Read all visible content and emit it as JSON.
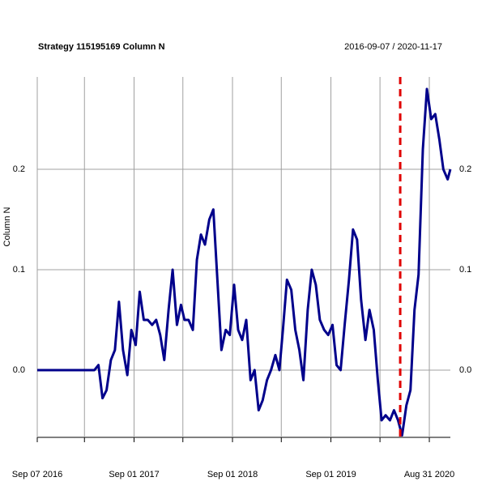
{
  "chart_data": {
    "type": "line",
    "title": "Strategy 115195169 Column N",
    "subtitle": "2016-09-07 / 2020-11-17",
    "y_label": "Column N",
    "xlim": [
      "2016-09-07",
      "2020-11-17"
    ],
    "ylim": [
      -0.067,
      0.292
    ],
    "yticks": [
      {
        "value": 0,
        "label": "0.0"
      },
      0.1,
      0.2
    ],
    "xticks": [
      {
        "value": "2016-09-07",
        "label": "Sep 07 2016"
      },
      {
        "value": "2017-09-01",
        "label": "Sep 01 2017"
      },
      {
        "value": "2018-09-01",
        "label": "Sep 01 2018"
      },
      {
        "value": "2019-09-01",
        "label": "Sep 01 2019"
      },
      {
        "value": "2020-08-31",
        "label": "Aug 31 2020"
      }
    ],
    "xminor_ticks": [
      "2017-03-01",
      "2018-03-01",
      "2019-03-01",
      "2020-03-01"
    ],
    "grid": true,
    "event_lines": [
      {
        "x": "2020-05-15",
        "color": "#e00000"
      }
    ],
    "x": [
      "2016-09-07",
      "2016-09-22",
      "2016-10-07",
      "2016-10-22",
      "2016-11-07",
      "2016-11-22",
      "2016-12-07",
      "2016-12-22",
      "2017-01-07",
      "2017-01-22",
      "2017-02-07",
      "2017-02-22",
      "2017-03-07",
      "2017-03-22",
      "2017-04-07",
      "2017-04-22",
      "2017-05-07",
      "2017-05-22",
      "2017-06-07",
      "2017-06-22",
      "2017-07-07",
      "2017-07-22",
      "2017-08-07",
      "2017-08-22",
      "2017-09-07",
      "2017-09-22",
      "2017-10-07",
      "2017-10-22",
      "2017-11-07",
      "2017-11-22",
      "2017-12-07",
      "2017-12-22",
      "2018-01-07",
      "2018-01-22",
      "2018-02-07",
      "2018-02-22",
      "2018-03-07",
      "2018-03-22",
      "2018-04-07",
      "2018-04-22",
      "2018-05-07",
      "2018-05-22",
      "2018-06-07",
      "2018-06-22",
      "2018-07-07",
      "2018-07-22",
      "2018-08-07",
      "2018-08-22",
      "2018-09-07",
      "2018-09-22",
      "2018-10-07",
      "2018-10-22",
      "2018-11-07",
      "2018-11-22",
      "2018-12-07",
      "2018-12-22",
      "2019-01-07",
      "2019-01-22",
      "2019-02-07",
      "2019-02-22",
      "2019-03-07",
      "2019-03-22",
      "2019-04-07",
      "2019-04-22",
      "2019-05-07",
      "2019-05-22",
      "2019-06-07",
      "2019-06-22",
      "2019-07-07",
      "2019-07-22",
      "2019-08-07",
      "2019-08-22",
      "2019-09-07",
      "2019-09-22",
      "2019-10-07",
      "2019-10-22",
      "2019-11-07",
      "2019-11-22",
      "2019-12-07",
      "2019-12-22",
      "2020-01-07",
      "2020-01-22",
      "2020-02-07",
      "2020-02-22",
      "2020-03-07",
      "2020-03-22",
      "2020-04-07",
      "2020-04-22",
      "2020-05-07",
      "2020-05-22",
      "2020-06-07",
      "2020-06-22",
      "2020-07-07",
      "2020-07-22",
      "2020-08-07",
      "2020-08-22",
      "2020-09-07",
      "2020-09-22",
      "2020-10-07",
      "2020-10-22",
      "2020-11-07",
      "2020-11-17"
    ],
    "series": [
      {
        "name": "Column N",
        "color": "#00008b",
        "values": [
          0,
          0,
          0,
          0,
          0,
          0,
          0,
          0,
          0,
          0,
          0,
          0,
          0,
          0,
          0,
          0.005,
          -0.028,
          -0.02,
          0.01,
          0.02,
          0.068,
          0.02,
          -0.005,
          0.04,
          0.025,
          0.078,
          0.05,
          0.05,
          0.045,
          0.05,
          0.035,
          0.01,
          0.06,
          0.1,
          0.045,
          0.065,
          0.05,
          0.05,
          0.04,
          0.11,
          0.135,
          0.125,
          0.15,
          0.16,
          0.09,
          0.02,
          0.04,
          0.035,
          0.085,
          0.04,
          0.03,
          0.05,
          -0.01,
          0.0,
          -0.04,
          -0.03,
          -0.01,
          0.0,
          0.015,
          0.0,
          0.04,
          0.09,
          0.08,
          0.04,
          0.02,
          -0.01,
          0.06,
          0.1,
          0.085,
          0.05,
          0.04,
          0.035,
          0.045,
          0.005,
          0.0,
          0.045,
          0.09,
          0.14,
          0.13,
          0.07,
          0.03,
          0.06,
          0.04,
          -0.01,
          -0.05,
          -0.045,
          -0.05,
          -0.04,
          -0.05,
          -0.065,
          -0.035,
          -0.02,
          0.06,
          0.095,
          0.22,
          0.28,
          0.25,
          0.255,
          0.23,
          0.2,
          0.19,
          0.2
        ]
      }
    ]
  }
}
